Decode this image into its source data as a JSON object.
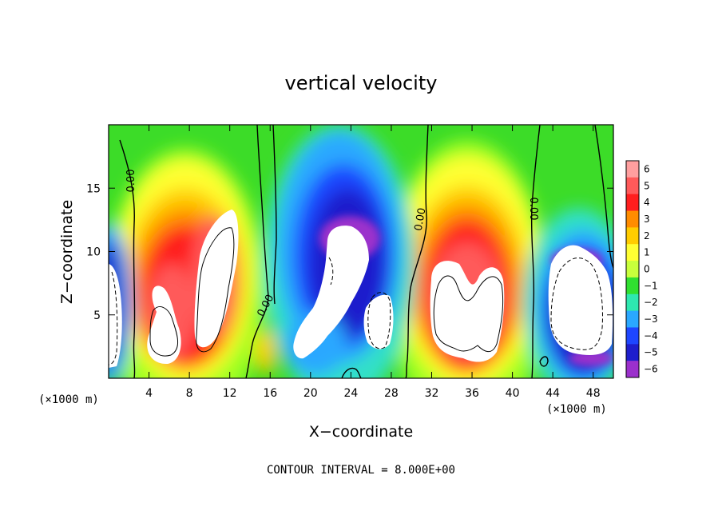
{
  "chart_data": {
    "type": "heatmap",
    "title": "vertical velocity",
    "xlabel": "X−coordinate",
    "ylabel": "Z−coordinate",
    "x_unit_left": "(×1000 m)",
    "x_unit_right": "(×1000 m)",
    "xlim": [
      0,
      50
    ],
    "ylim": [
      0,
      20
    ],
    "xticks": [
      4,
      8,
      12,
      16,
      20,
      24,
      28,
      32,
      36,
      40,
      44,
      48
    ],
    "yticks": [
      5,
      10,
      15
    ],
    "footnote": "CONTOUR INTERVAL = 8.000E+00",
    "contour_labels": [
      "0.00",
      "0.00",
      "0.00",
      "0.00"
    ],
    "colorbar": {
      "levels": [
        6,
        5,
        4,
        3,
        2,
        1,
        0,
        -1,
        -2,
        -3,
        -4,
        -5,
        -6
      ],
      "labels": [
        "6",
        "5",
        "4",
        "3",
        "2",
        "1",
        "0",
        "−1",
        "−2",
        "−3",
        "−4",
        "−5",
        "−6"
      ],
      "colors": [
        "#ff9f9f",
        "#ff5a5a",
        "#ff1e1e",
        "#ff8c00",
        "#ffcc00",
        "#ffff33",
        "#c8ff3c",
        "#30e030",
        "#2ee8b0",
        "#2aa8ff",
        "#1e46ff",
        "#1e1ecc",
        "#9b30cc"
      ],
      "saturated_color": "#ffffff"
    },
    "updrafts": [
      {
        "x": 1,
        "z": 4,
        "w": 9
      },
      {
        "x": 6,
        "z": 5.5,
        "w": 14
      },
      {
        "x": 10.5,
        "z": 7,
        "w": 14
      },
      {
        "x": 15,
        "z": 2.5,
        "w": 3
      },
      {
        "x": 35,
        "z": 6,
        "w": 16
      },
      {
        "x": 38.5,
        "z": 10,
        "w": 8
      }
    ],
    "downdrafts": [
      {
        "x": 23,
        "z": 8,
        "w": -14
      },
      {
        "x": 27,
        "z": 4,
        "w": -8
      },
      {
        "x": 19.5,
        "z": 3,
        "w": -7
      },
      {
        "x": 46.5,
        "z": 6,
        "w": -14
      },
      {
        "x": 0.6,
        "z": 9,
        "w": -5
      }
    ]
  }
}
